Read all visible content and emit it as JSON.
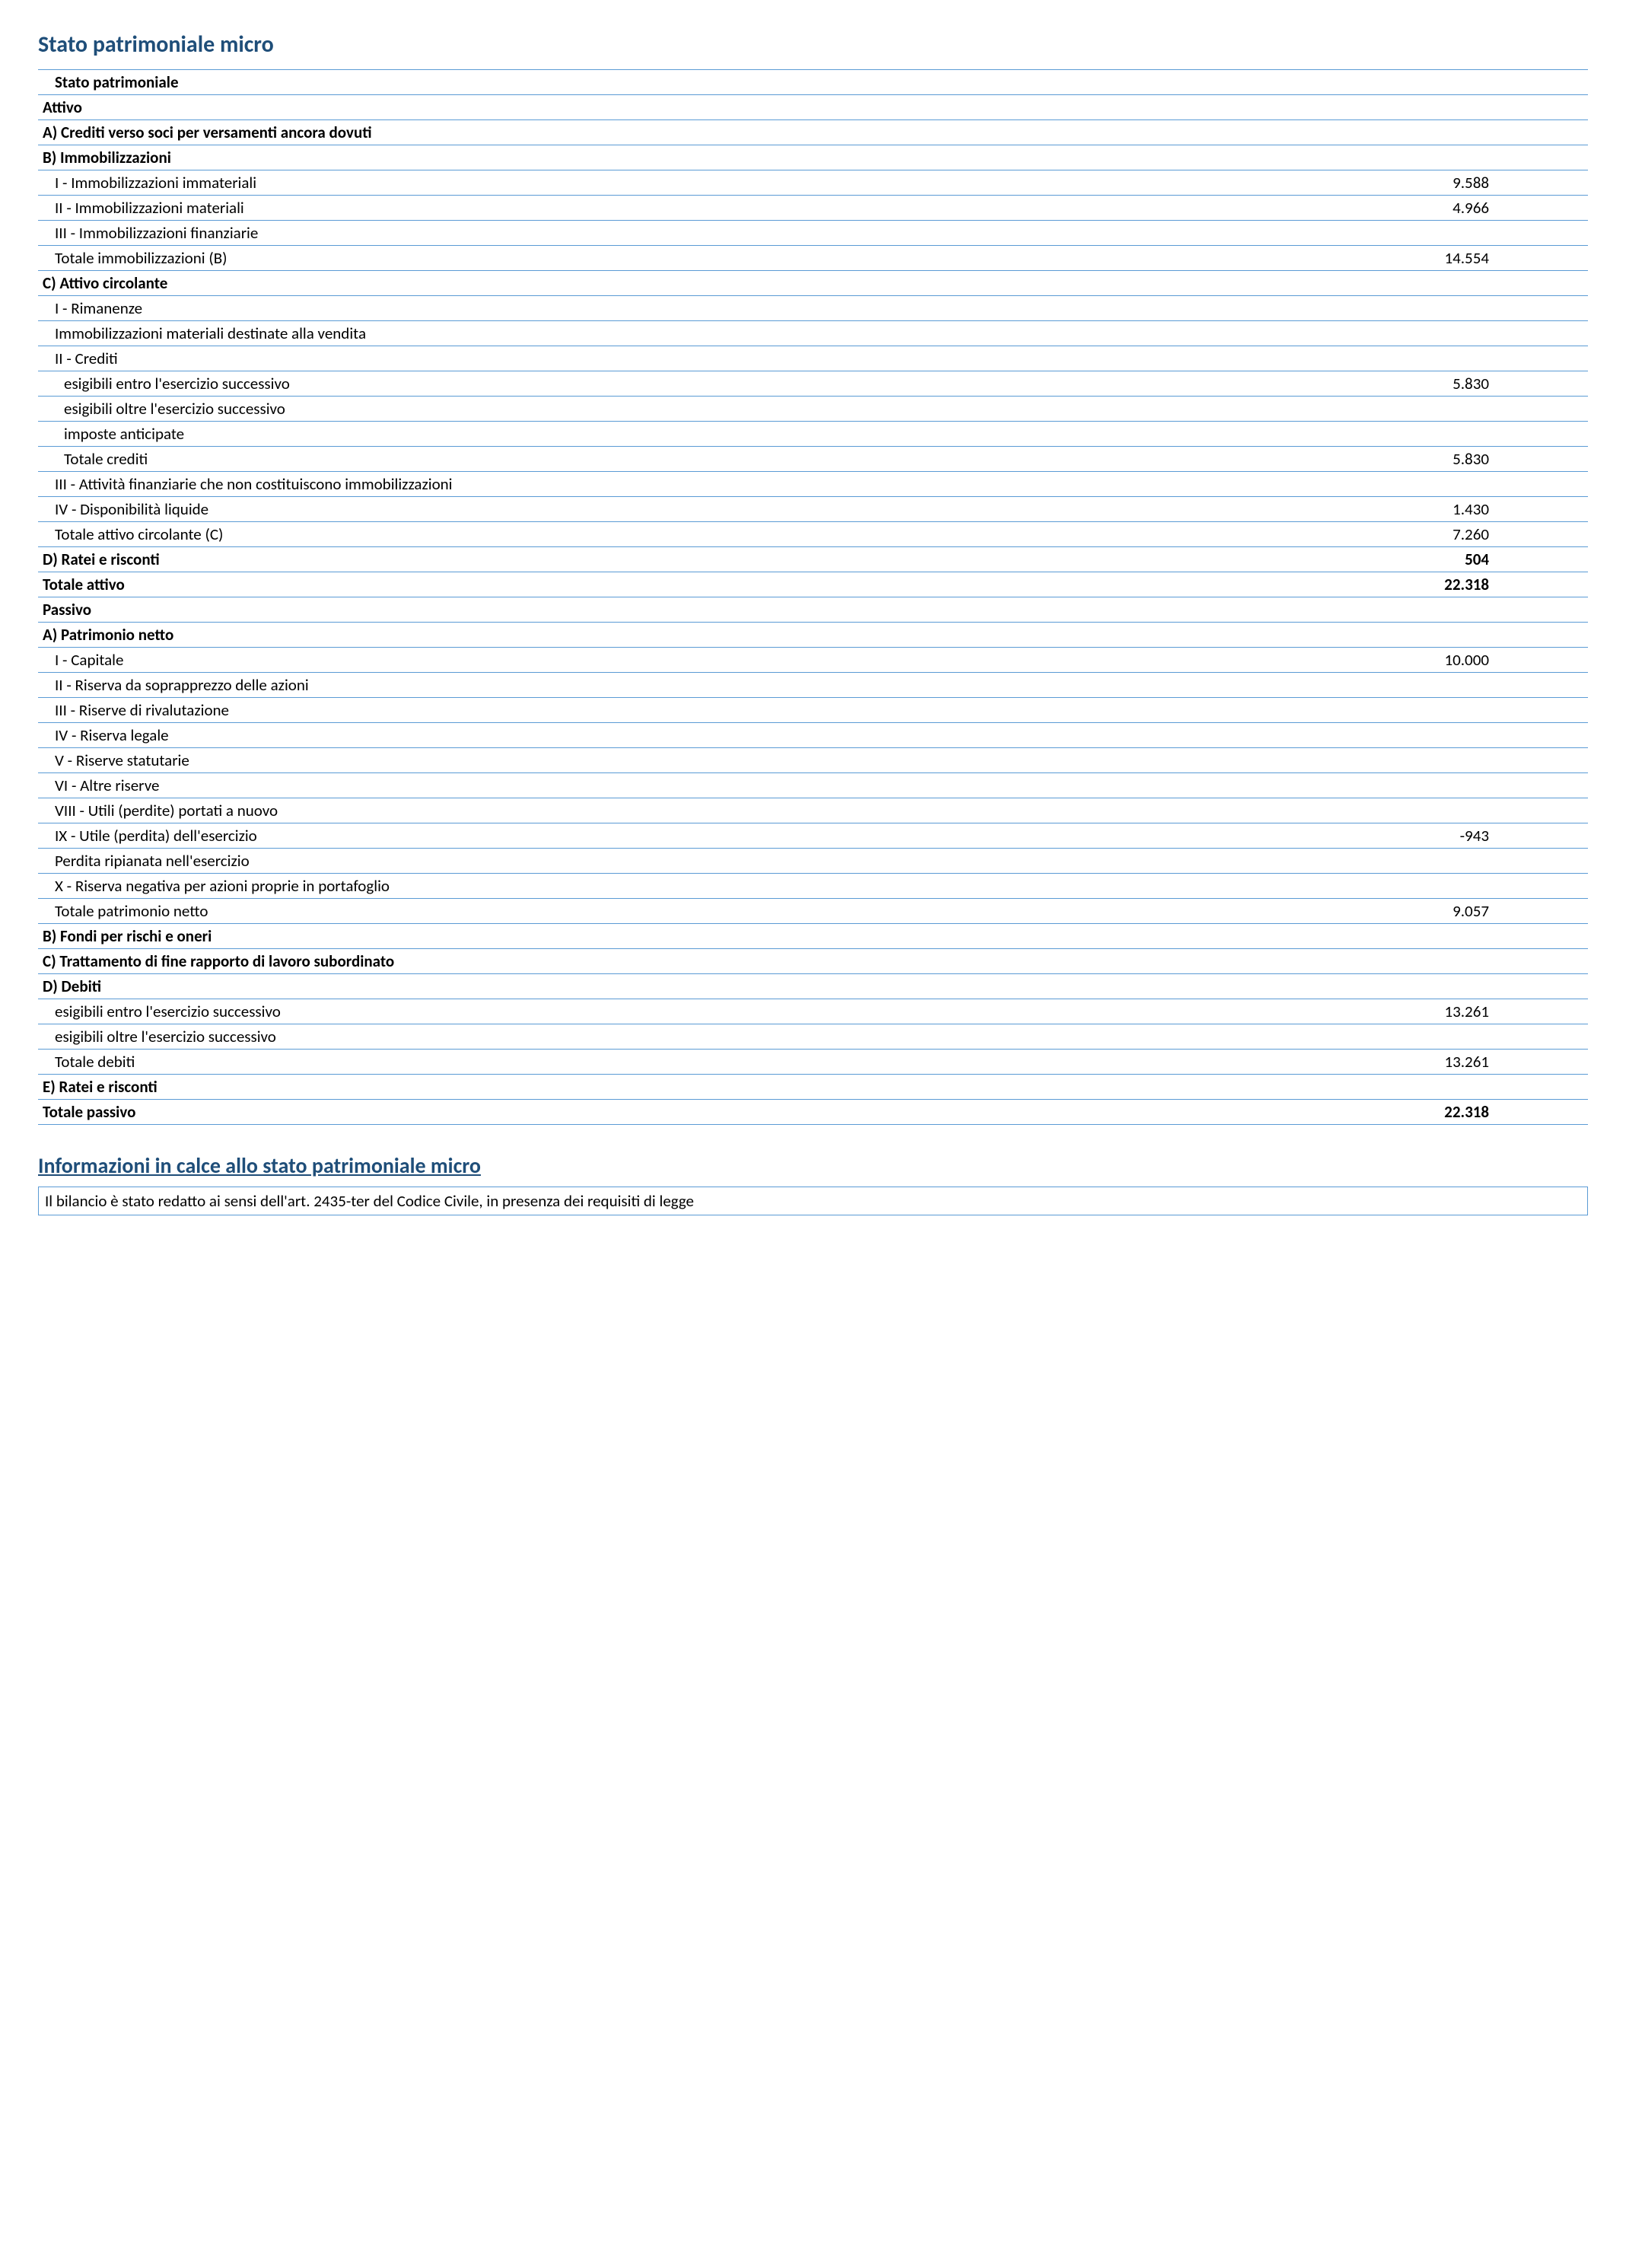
{
  "title": "Stato patrimoniale micro",
  "colors": {
    "heading": "#1f4e79",
    "border": "#5b9bd5",
    "text": "#000000",
    "background": "#ffffff"
  },
  "typography": {
    "font_family": "Calibri",
    "body_fontsize_pt": 11,
    "heading_fontsize_pt": 16,
    "subheading_fontsize_pt": 15
  },
  "rows": [
    {
      "label": "Stato patrimoniale",
      "value": "",
      "bold": true,
      "indent": 1
    },
    {
      "label": "Attivo",
      "value": "",
      "bold": true,
      "indent": 0
    },
    {
      "label": "A) Crediti verso soci per versamenti ancora dovuti",
      "value": "",
      "bold": true,
      "indent": 0
    },
    {
      "label": "B) Immobilizzazioni",
      "value": "",
      "bold": true,
      "indent": 0
    },
    {
      "label": "I - Immobilizzazioni immateriali",
      "value": "9.588",
      "bold": false,
      "indent": 1
    },
    {
      "label": "II - Immobilizzazioni materiali",
      "value": "4.966",
      "bold": false,
      "indent": 1
    },
    {
      "label": "III - Immobilizzazioni finanziarie",
      "value": "",
      "bold": false,
      "indent": 1
    },
    {
      "label": "Totale immobilizzazioni (B)",
      "value": "14.554",
      "bold": false,
      "indent": 1
    },
    {
      "label": "C) Attivo circolante",
      "value": "",
      "bold": true,
      "indent": 0
    },
    {
      "label": "I - Rimanenze",
      "value": "",
      "bold": false,
      "indent": 1
    },
    {
      "label": "Immobilizzazioni materiali destinate alla vendita",
      "value": "",
      "bold": false,
      "indent": 1
    },
    {
      "label": "II - Crediti",
      "value": "",
      "bold": false,
      "indent": 1
    },
    {
      "label": "esigibili entro l'esercizio successivo",
      "value": "5.830",
      "bold": false,
      "indent": 2
    },
    {
      "label": "esigibili oltre l'esercizio successivo",
      "value": "",
      "bold": false,
      "indent": 2
    },
    {
      "label": "imposte anticipate",
      "value": "",
      "bold": false,
      "indent": 2
    },
    {
      "label": "Totale crediti",
      "value": "5.830",
      "bold": false,
      "indent": 2
    },
    {
      "label": "III - Attività finanziarie che non costituiscono immobilizzazioni",
      "value": "",
      "bold": false,
      "indent": 1
    },
    {
      "label": "IV - Disponibilità liquide",
      "value": "1.430",
      "bold": false,
      "indent": 1
    },
    {
      "label": "Totale attivo circolante (C)",
      "value": "7.260",
      "bold": false,
      "indent": 1
    },
    {
      "label": "D) Ratei e risconti",
      "value": "504",
      "bold": true,
      "indent": 0
    },
    {
      "label": "Totale attivo",
      "value": "22.318",
      "bold": true,
      "indent": 0
    },
    {
      "label": "Passivo",
      "value": "",
      "bold": true,
      "indent": 0
    },
    {
      "label": "A) Patrimonio netto",
      "value": "",
      "bold": true,
      "indent": 0
    },
    {
      "label": "I - Capitale",
      "value": "10.000",
      "bold": false,
      "indent": 1
    },
    {
      "label": "II - Riserva da soprapprezzo delle azioni",
      "value": "",
      "bold": false,
      "indent": 1
    },
    {
      "label": "III - Riserve di rivalutazione",
      "value": "",
      "bold": false,
      "indent": 1
    },
    {
      "label": "IV - Riserva legale",
      "value": "",
      "bold": false,
      "indent": 1
    },
    {
      "label": "V - Riserve statutarie",
      "value": "",
      "bold": false,
      "indent": 1
    },
    {
      "label": "VI - Altre riserve",
      "value": "",
      "bold": false,
      "indent": 1
    },
    {
      "label": "VIII - Utili (perdite) portati a nuovo",
      "value": "",
      "bold": false,
      "indent": 1
    },
    {
      "label": "IX - Utile (perdita) dell'esercizio",
      "value": "-943",
      "bold": false,
      "indent": 1
    },
    {
      "label": "Perdita ripianata nell'esercizio",
      "value": "",
      "bold": false,
      "indent": 1
    },
    {
      "label": "X - Riserva negativa per azioni proprie in portafoglio",
      "value": "",
      "bold": false,
      "indent": 1
    },
    {
      "label": "Totale patrimonio netto",
      "value": "9.057",
      "bold": false,
      "indent": 1
    },
    {
      "label": "B) Fondi per rischi e oneri",
      "value": "",
      "bold": true,
      "indent": 0
    },
    {
      "label": "C) Trattamento di fine rapporto di lavoro subordinato",
      "value": "",
      "bold": true,
      "indent": 0
    },
    {
      "label": "D) Debiti",
      "value": "",
      "bold": true,
      "indent": 0
    },
    {
      "label": "esigibili entro l'esercizio successivo",
      "value": "13.261",
      "bold": false,
      "indent": 1
    },
    {
      "label": "esigibili oltre l'esercizio successivo",
      "value": "",
      "bold": false,
      "indent": 1
    },
    {
      "label": "Totale debiti",
      "value": "13.261",
      "bold": false,
      "indent": 1
    },
    {
      "label": "E) Ratei e risconti",
      "value": "",
      "bold": true,
      "indent": 0
    },
    {
      "label": "Totale passivo",
      "value": "22.318",
      "bold": true,
      "indent": 0
    }
  ],
  "footer": {
    "heading": "Informazioni in calce allo stato patrimoniale micro",
    "text": "Il bilancio è stato redatto ai sensi dell'art. 2435-ter del Codice Civile, in presenza dei requisiti di legge"
  }
}
